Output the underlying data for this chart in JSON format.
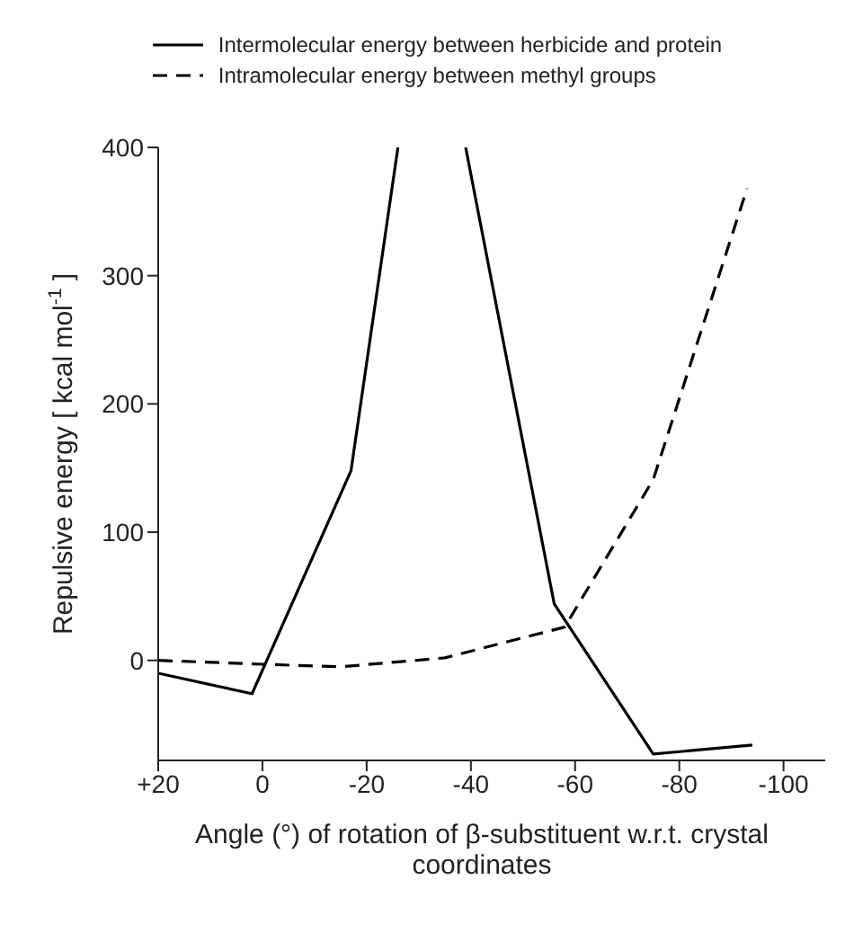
{
  "chart_data": {
    "type": "line",
    "xlabel": "Angle (°) of rotation of β-substituent w.r.t. crystal coordinates",
    "ylabel": "Repulsive energy [ kcal mol$^{-1}$ ]",
    "series": [
      {
        "name": "Intermolecular energy between herbicide and protein",
        "color": "#000000",
        "line_style": "solid",
        "x": [
          20,
          2,
          -17,
          -26,
          -32,
          -39,
          -56,
          -75,
          -94
        ],
        "values": [
          -10,
          -26,
          148,
          400,
          null,
          400,
          44,
          -73,
          -66
        ]
      },
      {
        "name": "Intramolecular energy between methyl groups",
        "color": "#000000",
        "line_style": "dashed",
        "x": [
          20,
          0,
          -15,
          -35,
          -58,
          -75,
          -93
        ],
        "values": [
          0,
          -3,
          -5,
          2,
          26,
          141,
          368
        ]
      }
    ],
    "xlim": [
      20,
      -108
    ],
    "xticks": [
      {
        "value": 20,
        "label": "+20"
      },
      0,
      -20,
      -40,
      -60,
      -80,
      -100
    ],
    "ylim": [
      -78,
      400
    ],
    "yticks": [
      0,
      100,
      200,
      300,
      400
    ],
    "legend": "top",
    "marker": "none"
  }
}
